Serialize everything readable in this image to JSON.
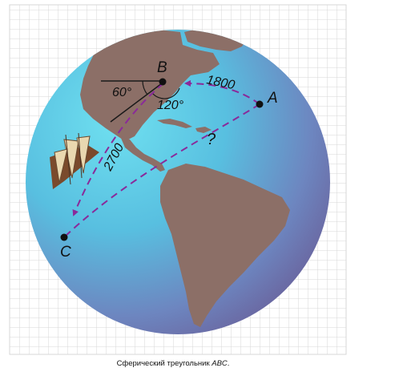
{
  "points": {
    "a": "A",
    "b": "B",
    "c": "C"
  },
  "angles": {
    "left": "60°",
    "right": "120°"
  },
  "distances": {
    "ab": "1800",
    "bc": "2700",
    "ac": "?"
  },
  "caption": {
    "prefix": "Сферический треугольник ",
    "emphasis": "ABC",
    "suffix": "."
  },
  "colors": {
    "ocean_center": "#5fd3ea",
    "ocean_edge": "#6c6fa8",
    "land": "#8c6f67",
    "path": "#8a2a9a",
    "grid": "#d7d7d7"
  }
}
